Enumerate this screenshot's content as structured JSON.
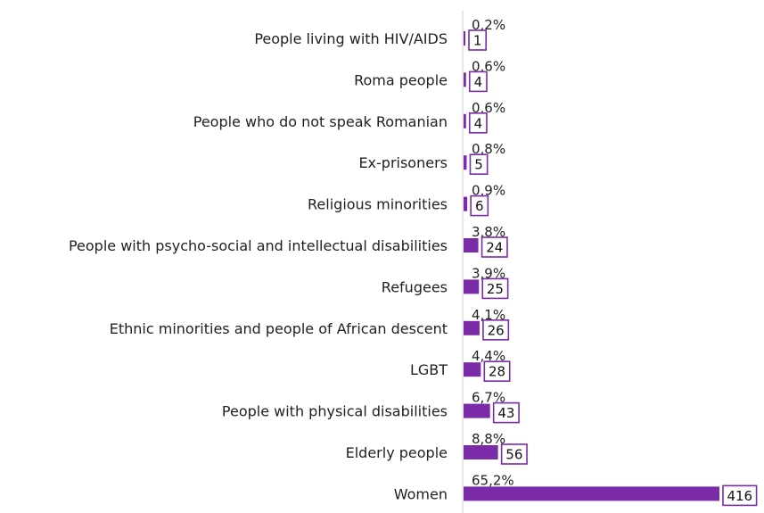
{
  "chart_data": {
    "type": "bar",
    "orientation": "horizontal",
    "categories": [
      "People living with HIV/AIDS",
      "Roma people",
      "People who do not speak Romanian",
      "Ex-prisoners",
      "Religious minorities",
      "People with psycho-social and intellectual disabilities",
      "Refugees",
      "Ethnic minorities and people of African descent",
      "LGBT",
      "People with physical disabilities",
      "Elderly people",
      "Women"
    ],
    "values": [
      1,
      4,
      4,
      5,
      6,
      24,
      25,
      26,
      28,
      43,
      56,
      416
    ],
    "percent_labels": [
      "0,2%",
      "0,6%",
      "0,6%",
      "0,8%",
      "0,9%",
      "3,8%",
      "3,9%",
      "4,1%",
      "4,4%",
      "6,7%",
      "8,8%",
      "65,2%"
    ],
    "count_labels": [
      "1",
      "4",
      "4",
      "5",
      "6",
      "24",
      "25",
      "26",
      "28",
      "43",
      "56",
      "416"
    ],
    "bar_color": "#7b2aa8",
    "grid": false,
    "legend": "none"
  }
}
